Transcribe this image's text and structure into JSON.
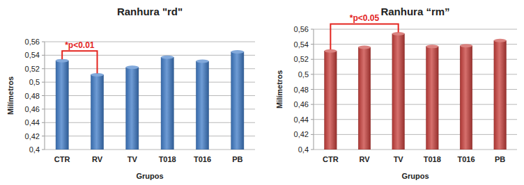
{
  "chart_data": [
    {
      "type": "bar",
      "title": "Ranhura \"rd\"",
      "x_label": "Grupos",
      "y_label": "Milímetros",
      "categories": [
        "CTR",
        "RV",
        "TV",
        "T018",
        "T016",
        "PB"
      ],
      "values": [
        0.532,
        0.511,
        0.522,
        0.537,
        0.531,
        0.545
      ],
      "color": "#3f7bc7",
      "ylim": [
        0.4,
        0.56
      ],
      "yticks": [
        {
          "value": 0.4,
          "label": "0,4"
        },
        {
          "value": 0.42,
          "label": "0,42"
        },
        {
          "value": 0.44,
          "label": "0,44"
        },
        {
          "value": 0.46,
          "label": "0,46"
        },
        {
          "value": 0.48,
          "label": "0,48"
        },
        {
          "value": 0.5,
          "label": "0,5"
        },
        {
          "value": 0.52,
          "label": "0,52"
        },
        {
          "value": 0.54,
          "label": "0,54"
        },
        {
          "value": 0.56,
          "label": "0,56"
        }
      ],
      "grid": true,
      "annotations": [
        {
          "text": "*p<0.01",
          "between": [
            "CTR",
            "RV"
          ],
          "color": "#e3241f"
        }
      ]
    },
    {
      "type": "bar",
      "title": "Ranhura “rm”",
      "x_label": "Grupos",
      "y_label": "Milímetros",
      "categories": [
        "CTR",
        "RV",
        "TV",
        "T018",
        "T016",
        "PB"
      ],
      "values": [
        0.531,
        0.536,
        0.554,
        0.537,
        0.538,
        0.545
      ],
      "color": "#c8403c",
      "ylim": [
        0.4,
        0.56
      ],
      "yticks": [
        {
          "value": 0.4,
          "label": "0,4"
        },
        {
          "value": 0.42,
          "label": "0,42"
        },
        {
          "value": 0.44,
          "label": "0,44"
        },
        {
          "value": 0.46,
          "label": "0,46"
        },
        {
          "value": 0.48,
          "label": "0,48"
        },
        {
          "value": 0.5,
          "label": "0,5"
        },
        {
          "value": 0.52,
          "label": "0,52"
        },
        {
          "value": 0.54,
          "label": "0,54"
        },
        {
          "value": 0.56,
          "label": "0,56"
        }
      ],
      "grid": true,
      "annotations": [
        {
          "text": "*p<0.05",
          "between": [
            "CTR",
            "TV"
          ],
          "color": "#e3241f"
        }
      ]
    }
  ]
}
